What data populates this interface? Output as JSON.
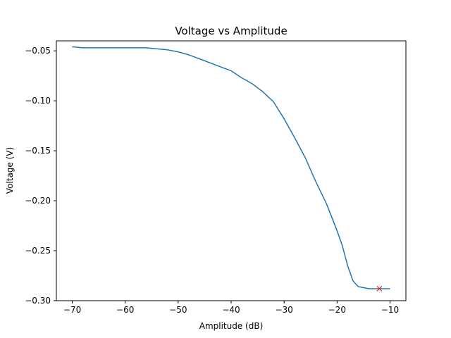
{
  "chart_data": {
    "type": "line",
    "title": "Voltage vs Amplitude",
    "xlabel": "Amplitude (dB)",
    "ylabel": "Voltage (V)",
    "xlim": [
      -73,
      -7
    ],
    "ylim": [
      -0.3,
      -0.04
    ],
    "xticks": [
      -70,
      -60,
      -50,
      -40,
      -30,
      -20,
      -10
    ],
    "xtick_labels": [
      "−70",
      "−60",
      "−50",
      "−40",
      "−30",
      "−20",
      "−10"
    ],
    "yticks": [
      -0.05,
      -0.1,
      -0.15,
      -0.2,
      -0.25,
      -0.3
    ],
    "ytick_labels": [
      "−0.05",
      "−0.10",
      "−0.15",
      "−0.20",
      "−0.25",
      "−0.30"
    ],
    "grid": false,
    "series": [
      {
        "color": "#1f77b4",
        "x": [
          -70,
          -68,
          -66,
          -64,
          -62,
          -60,
          -58,
          -56,
          -54,
          -52,
          -50,
          -48,
          -46,
          -44,
          -42,
          -40,
          -38,
          -36,
          -34,
          -32,
          -30,
          -28,
          -26,
          -24,
          -22,
          -20,
          -19,
          -18,
          -17,
          -16,
          -15,
          -14,
          -13,
          -12,
          -11,
          -10
        ],
        "y": [
          -0.046,
          -0.047,
          -0.047,
          -0.047,
          -0.047,
          -0.047,
          -0.047,
          -0.047,
          -0.048,
          -0.049,
          -0.051,
          -0.054,
          -0.058,
          -0.062,
          -0.066,
          -0.07,
          -0.077,
          -0.083,
          -0.091,
          -0.101,
          -0.118,
          -0.137,
          -0.157,
          -0.181,
          -0.203,
          -0.23,
          -0.245,
          -0.265,
          -0.28,
          -0.286,
          -0.287,
          -0.288,
          -0.288,
          -0.288,
          -0.288,
          -0.288
        ]
      }
    ],
    "markers": [
      {
        "x": -12,
        "y": -0.288,
        "symbol": "x",
        "color": "#d62728"
      }
    ]
  }
}
